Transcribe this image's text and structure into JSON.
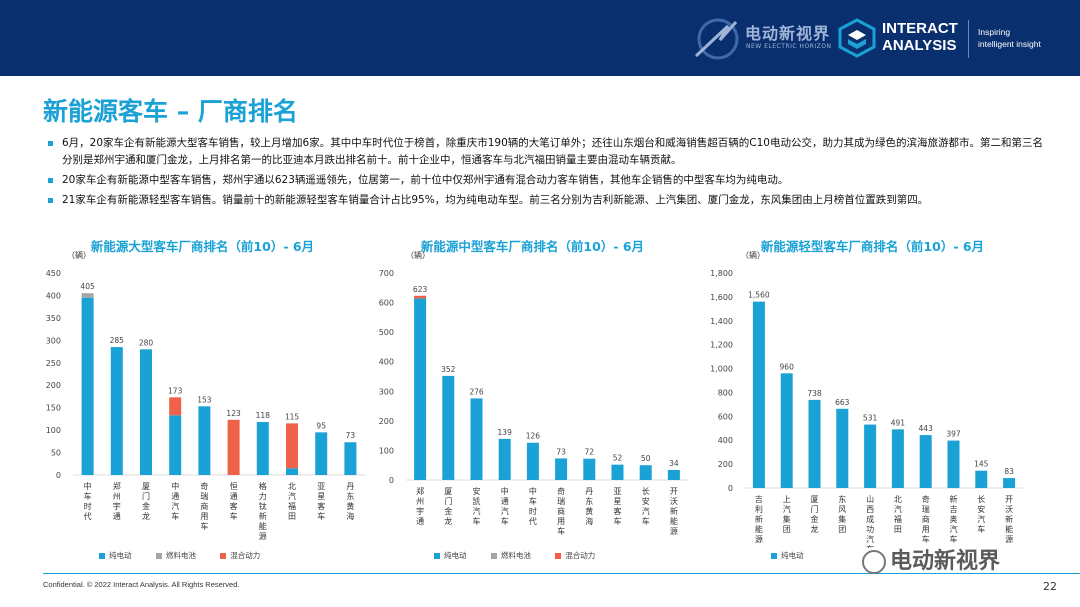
{
  "header": {
    "ev_brand": "电动新视界",
    "ev_sub": "NEW ELECTRIC HORIZON",
    "ia_name_line1": "INTERACT",
    "ia_name_line2": "ANALYSIS",
    "tagline_line1": "Inspiring",
    "tagline_line2": "intelligent insight"
  },
  "title": "新能源客车 – 厂商排名",
  "bullets": [
    "6月，20家车企有新能源大型客车销售，较上月增加6家。其中中车时代位于榜首，除重庆市190辆的大笔订单外；还往山东烟台和威海销售超百辆的C10电动公交，助力其成为绿色的滨海旅游都市。第二和第三名分别是郑州宇通和厦门金龙，上月排名第一的比亚迪本月跌出排名前十。前十企业中，恒通客车与北汽福田销量主要由混动车辆贡献。",
    "20家车企有新能源中型客车销售，郑州宇通以623辆遥遥领先，位居第一，前十位中仅郑州宇通有混合动力客车销售，其他车企销售的中型客车均为纯电动。",
    "21家车企有新能源轻型客车销售。销量前十的新能源轻型客车销量合计占比95%，均为纯电动车型。前三名分别为吉利新能源、上汽集团、厦门金龙，东风集团由上月榜首位置跌到第四。"
  ],
  "colors": {
    "bev": "#1aa2d6",
    "fcev": "#a6a6a6",
    "hybrid": "#f0614a",
    "accent": "#1aa2d6",
    "header_bg": "#0a2f6e"
  },
  "legend": {
    "bev": "纯电动",
    "fcev": "燃料电池",
    "hybrid": "混合动力"
  },
  "chart_data": [
    {
      "type": "bar",
      "title": "新能源大型客车厂商排名（前10）- 6月",
      "ylabel": "（辆）",
      "ylim": [
        0,
        450
      ],
      "yticks": [
        "0",
        "50",
        "100",
        "150",
        "200",
        "250",
        "300",
        "350",
        "400",
        "450"
      ],
      "stacked": true,
      "categories": [
        "中车时代",
        "郑州宇通",
        "厦门金龙",
        "中通汽车",
        "奇瑞商用车",
        "恒通客车",
        "格力钛新能源",
        "北汽福田",
        "亚星客车",
        "丹东黄海"
      ],
      "totals": [
        405,
        285,
        280,
        173,
        153,
        123,
        118,
        115,
        95,
        73
      ],
      "total_labels": [
        "405",
        "285",
        "280",
        "173",
        "153",
        "123",
        "118",
        "115",
        "95",
        "73"
      ],
      "series": [
        {
          "name": "纯电动",
          "key": "bev",
          "values": [
            395,
            285,
            280,
            133,
            153,
            0,
            118,
            15,
            95,
            73
          ]
        },
        {
          "name": "燃料电池",
          "key": "fcev",
          "values": [
            10,
            0,
            0,
            0,
            0,
            0,
            0,
            0,
            0,
            0
          ]
        },
        {
          "name": "混合动力",
          "key": "hybrid",
          "values": [
            0,
            0,
            0,
            40,
            0,
            123,
            0,
            100,
            0,
            0
          ]
        }
      ]
    },
    {
      "type": "bar",
      "title": "新能源中型客车厂商排名（前10）- 6月",
      "ylabel": "（辆）",
      "ylim": [
        0,
        700
      ],
      "yticks": [
        "0",
        "100",
        "200",
        "300",
        "400",
        "500",
        "600",
        "700"
      ],
      "stacked": true,
      "categories": [
        "郑州宇通",
        "厦门金龙",
        "安凯汽车",
        "中通汽车",
        "中车时代",
        "奇瑞商用车",
        "丹东黄海",
        "亚星客车",
        "长安汽车",
        "开沃新能源"
      ],
      "totals": [
        623,
        352,
        276,
        139,
        126,
        73,
        72,
        52,
        50,
        34
      ],
      "total_labels": [
        "623",
        "352",
        "276",
        "139",
        "126",
        "73",
        "72",
        "52",
        "50",
        "34"
      ],
      "series": [
        {
          "name": "纯电动",
          "key": "bev",
          "values": [
            614,
            352,
            276,
            139,
            126,
            73,
            72,
            52,
            50,
            34
          ]
        },
        {
          "name": "燃料电池",
          "key": "fcev",
          "values": [
            0,
            0,
            0,
            0,
            0,
            0,
            0,
            0,
            0,
            0
          ]
        },
        {
          "name": "混合动力",
          "key": "hybrid",
          "values": [
            9,
            0,
            0,
            0,
            0,
            0,
            0,
            0,
            0,
            0
          ]
        }
      ]
    },
    {
      "type": "bar",
      "title": "新能源轻型客车厂商排名（前10）- 6月",
      "ylabel": "（辆）",
      "ylim": [
        0,
        1800
      ],
      "yticks": [
        "0",
        "200",
        "400",
        "600",
        "800",
        "1,000",
        "1,200",
        "1,400",
        "1,600",
        "1,800"
      ],
      "stacked": true,
      "categories": [
        "吉利新能源",
        "上汽集团",
        "厦门金龙",
        "东风集团",
        "山西成功汽车",
        "北汽福田",
        "奇瑞商用车",
        "新吉奥汽车",
        "长安汽车",
        "开沃新能源"
      ],
      "totals": [
        1560,
        960,
        738,
        663,
        531,
        491,
        443,
        397,
        145,
        83
      ],
      "total_labels": [
        "1,560",
        "960",
        "738",
        "663",
        "531",
        "491",
        "443",
        "397",
        "145",
        "83"
      ],
      "series": [
        {
          "name": "纯电动",
          "key": "bev",
          "values": [
            1560,
            960,
            738,
            663,
            531,
            491,
            443,
            397,
            145,
            83
          ]
        }
      ]
    }
  ],
  "footer": {
    "confidential": "Confidential. © 2022 Interact Analysis. All Rights Reserved.",
    "page": "22",
    "watermark": "电动新视界"
  }
}
